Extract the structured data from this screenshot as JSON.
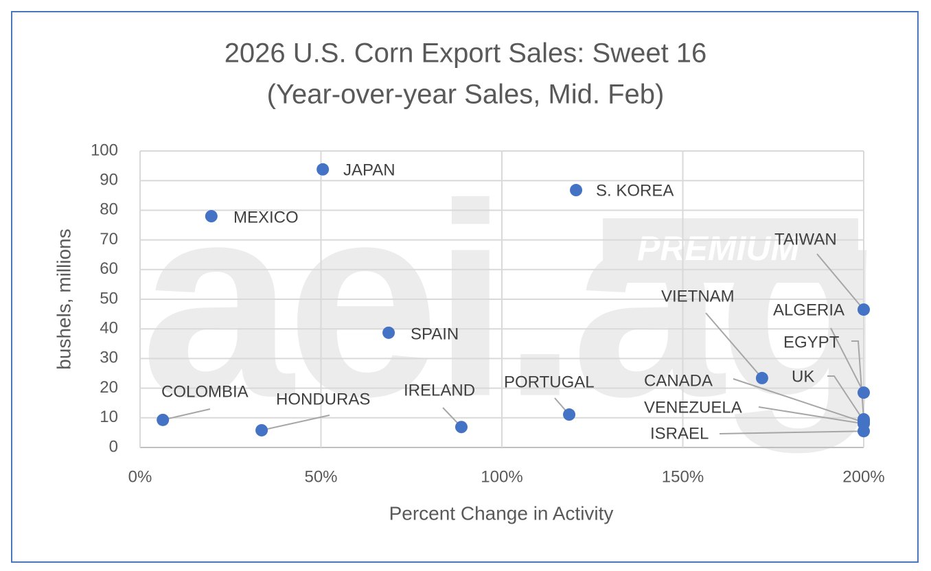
{
  "chart_data": {
    "type": "scatter",
    "title": "2026 U.S. Corn Export Sales: Sweet 16",
    "subtitle": "(Year-over-year Sales, Mid. Feb)",
    "x_label": "Percent Change in Activity",
    "y_label": "bushels, millions",
    "watermark": {
      "text": "aei.ag",
      "badge": "PREMIUM"
    },
    "color": "#4472c4",
    "labels": [
      "COLOMBIA",
      "MEXICO",
      "HONDURAS",
      "JAPAN",
      "SPAIN",
      "IRELAND",
      "PORTUGAL",
      "S. KOREA",
      "VIETNAM",
      "TAIWAN",
      "ALGERIA",
      "EGYPT",
      "UK",
      "CANADA",
      "VENEZUELA",
      "ISRAEL"
    ],
    "x": [
      6.3,
      19.7,
      33.6,
      50.5,
      68.7,
      88.8,
      118.6,
      120.5,
      171.9,
      200,
      200,
      200,
      200,
      200,
      200,
      200
    ],
    "values": [
      9.3,
      78,
      5.8,
      93.8,
      38.7,
      6.9,
      11.1,
      86.8,
      23.4,
      46.5,
      18.5,
      9.5,
      9,
      8.5,
      8,
      5.5
    ],
    "xlim": [
      0,
      200
    ],
    "xticks": [
      {
        "value": 0,
        "label": "0%"
      },
      {
        "value": 50,
        "label": "50%"
      },
      {
        "value": 100,
        "label": "100%"
      },
      {
        "value": 150,
        "label": "150%"
      },
      {
        "value": 200,
        "label": "200%"
      }
    ],
    "ylim": [
      0,
      100
    ],
    "yticks": [
      0,
      10,
      20,
      30,
      40,
      50,
      60,
      70,
      80,
      90,
      100
    ],
    "grid": true
  }
}
